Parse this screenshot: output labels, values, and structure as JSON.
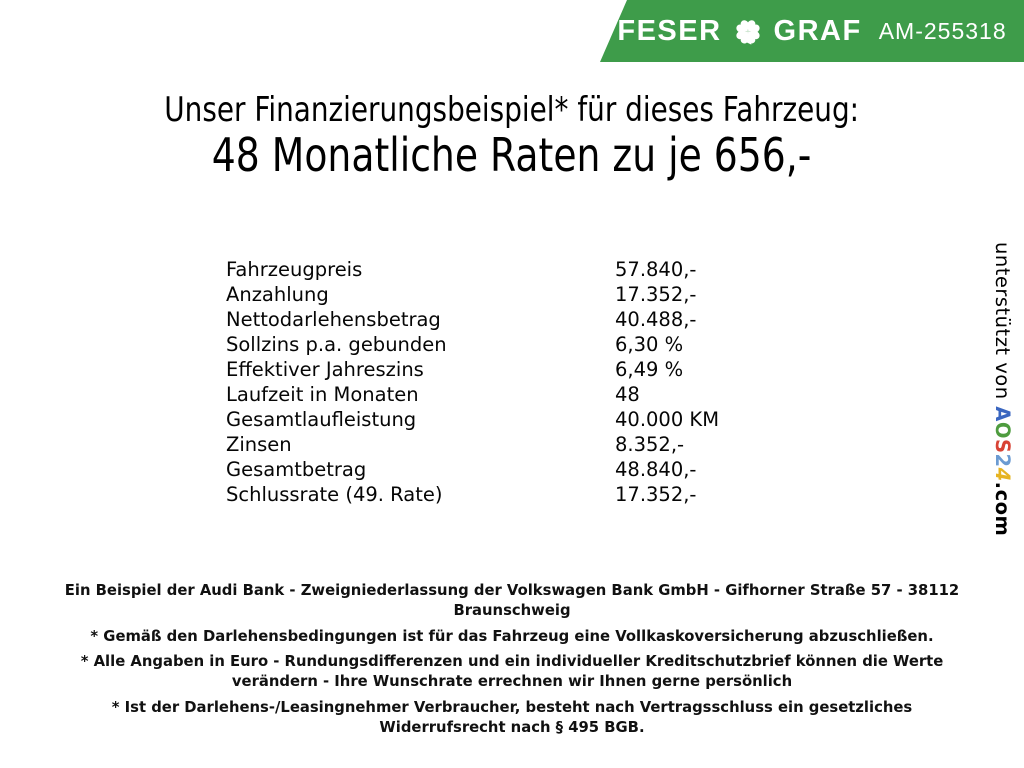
{
  "banner": {
    "brand_left": "FESER",
    "brand_right": "GRAF",
    "vehicle_code": "AM-255318",
    "bg_color": "#3e9c4a",
    "text_color": "#ffffff",
    "icon": "four-leaf-clover-icon"
  },
  "title": {
    "line1": "Unser Finanzierungsbeispiel* für dieses Fahrzeug:",
    "line2": "48 Monatliche Raten zu je 656,-"
  },
  "financing_table": {
    "rows": [
      {
        "label": "Fahrzeugpreis",
        "value": "57.840,-"
      },
      {
        "label": "Anzahlung",
        "value": "17.352,-"
      },
      {
        "label": "Nettodarlehensbetrag",
        "value": "40.488,-"
      },
      {
        "label": "Sollzins p.a. gebunden",
        "value": "6,30 %"
      },
      {
        "label": "Effektiver Jahreszins",
        "value": "6,49 %"
      },
      {
        "label": "Laufzeit in Monaten",
        "value": "48"
      },
      {
        "label": "Gesamtlaufleistung",
        "value": "40.000 KM"
      },
      {
        "label": "Zinsen",
        "value": "8.352,-"
      },
      {
        "label": "Gesamtbetrag",
        "value": "48.840,-"
      },
      {
        "label": "Schlussrate (49. Rate)",
        "value": "17.352,-"
      }
    ]
  },
  "side_credit": {
    "prefix": "unterstützt von ",
    "logo_letters": [
      {
        "char": "A",
        "color": "#3a66c0"
      },
      {
        "char": "O",
        "color": "#4e9c3f"
      },
      {
        "char": "S",
        "color": "#d84335"
      },
      {
        "char": "2",
        "color": "#6b9bd2"
      },
      {
        "char": "4",
        "color": "#e6b422"
      }
    ],
    "suffix": ".com"
  },
  "footnotes": [
    "Ein Beispiel der Audi Bank - Zweigniederlassung der Volkswagen Bank GmbH - Gifhorner Straße 57 - 38112 Braunschweig",
    "* Gemäß den Darlehensbedingungen ist für das Fahrzeug eine Vollkaskoversicherung abzuschließen.",
    "* Alle Angaben in Euro - Rundungsdifferenzen und ein individueller Kreditschutzbrief können die Werte verändern - Ihre Wunschrate errechnen wir Ihnen gerne persönlich",
    "* Ist der Darlehens-/Leasingnehmer Verbraucher, besteht nach Vertragsschluss ein gesetzliches Widerrufsrecht nach § 495 BGB."
  ]
}
